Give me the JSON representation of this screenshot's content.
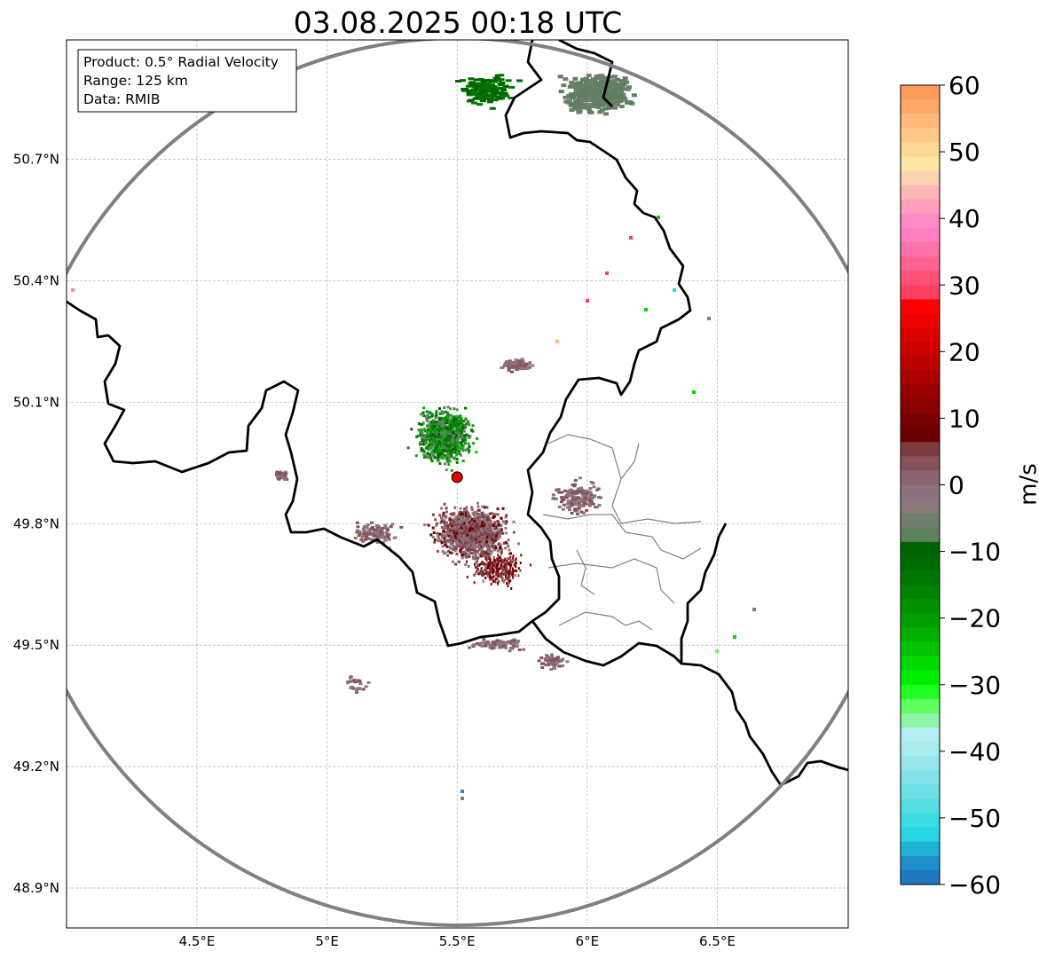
{
  "title": "03.08.2025 00:18 UTC",
  "info_box": {
    "product": "Product: 0.5° Radial Velocity",
    "range": "Range: 125 km",
    "data": "Data: RMIB"
  },
  "axes": {
    "lat_ticks": [
      "48.9°N",
      "49.2°N",
      "49.5°N",
      "49.8°N",
      "50.1°N",
      "50.4°N",
      "50.7°N"
    ],
    "lon_ticks": [
      "4.5°E",
      "5°E",
      "5.5°E",
      "6°E",
      "6.5°E"
    ],
    "lat_values": [
      48.9,
      49.2,
      49.5,
      49.8,
      50.1,
      50.4,
      50.7
    ],
    "lon_values": [
      4.5,
      5.0,
      5.5,
      6.0,
      6.5
    ],
    "lon_range": [
      4.0,
      7.0
    ],
    "lat_range": [
      48.8,
      50.99
    ],
    "grid": true
  },
  "radar_site": {
    "lon": 5.5,
    "lat": 49.915,
    "color": "#e00000"
  },
  "colorbar": {
    "label": "m/s",
    "min": -60,
    "max": 60,
    "tick_labels": [
      "60",
      "50",
      "40",
      "30",
      "20",
      "10",
      "0",
      "−10",
      "−20",
      "−30",
      "−40",
      "−50",
      "−60"
    ],
    "tick_values": [
      60,
      50,
      40,
      30,
      20,
      10,
      0,
      -10,
      -20,
      -30,
      -40,
      -50,
      -60
    ],
    "colors_top_to_bottom": [
      "#ff9a5a",
      "#ffa86a",
      "#ffb878",
      "#ffc887",
      "#ffd896",
      "#ffe6a2",
      "#ffd2b0",
      "#ffb8b6",
      "#ff9fbd",
      "#ff8ac8",
      "#ff7fbf",
      "#ff72a8",
      "#ff6290",
      "#ff5078",
      "#ff4060",
      "#ff0000",
      "#ee0000",
      "#dc0000",
      "#cc0000",
      "#bb0000",
      "#aa0000",
      "#990000",
      "#880000",
      "#770000",
      "#6a0000",
      "#7d3b40",
      "#86525a",
      "#8a6470",
      "#8c7280",
      "#8a7a7a",
      "#6e7e6e",
      "#5f805f",
      "#006400",
      "#006b00",
      "#007600",
      "#008300",
      "#009000",
      "#009f00",
      "#00b000",
      "#00c400",
      "#00da00",
      "#00ee00",
      "#20ff20",
      "#60ff60",
      "#90f4a8",
      "#b4eef0",
      "#a8ecee",
      "#96e6ea",
      "#80e2e6",
      "#6ce0e6",
      "#54dee4",
      "#3cdce4",
      "#28d6e2",
      "#20b4d4",
      "#2090cc",
      "#1f78c0"
    ]
  },
  "colors": {
    "range_ring": "#808080",
    "country_border": "#000000",
    "province_border": "#808080",
    "grid": "#b0b0b0"
  }
}
